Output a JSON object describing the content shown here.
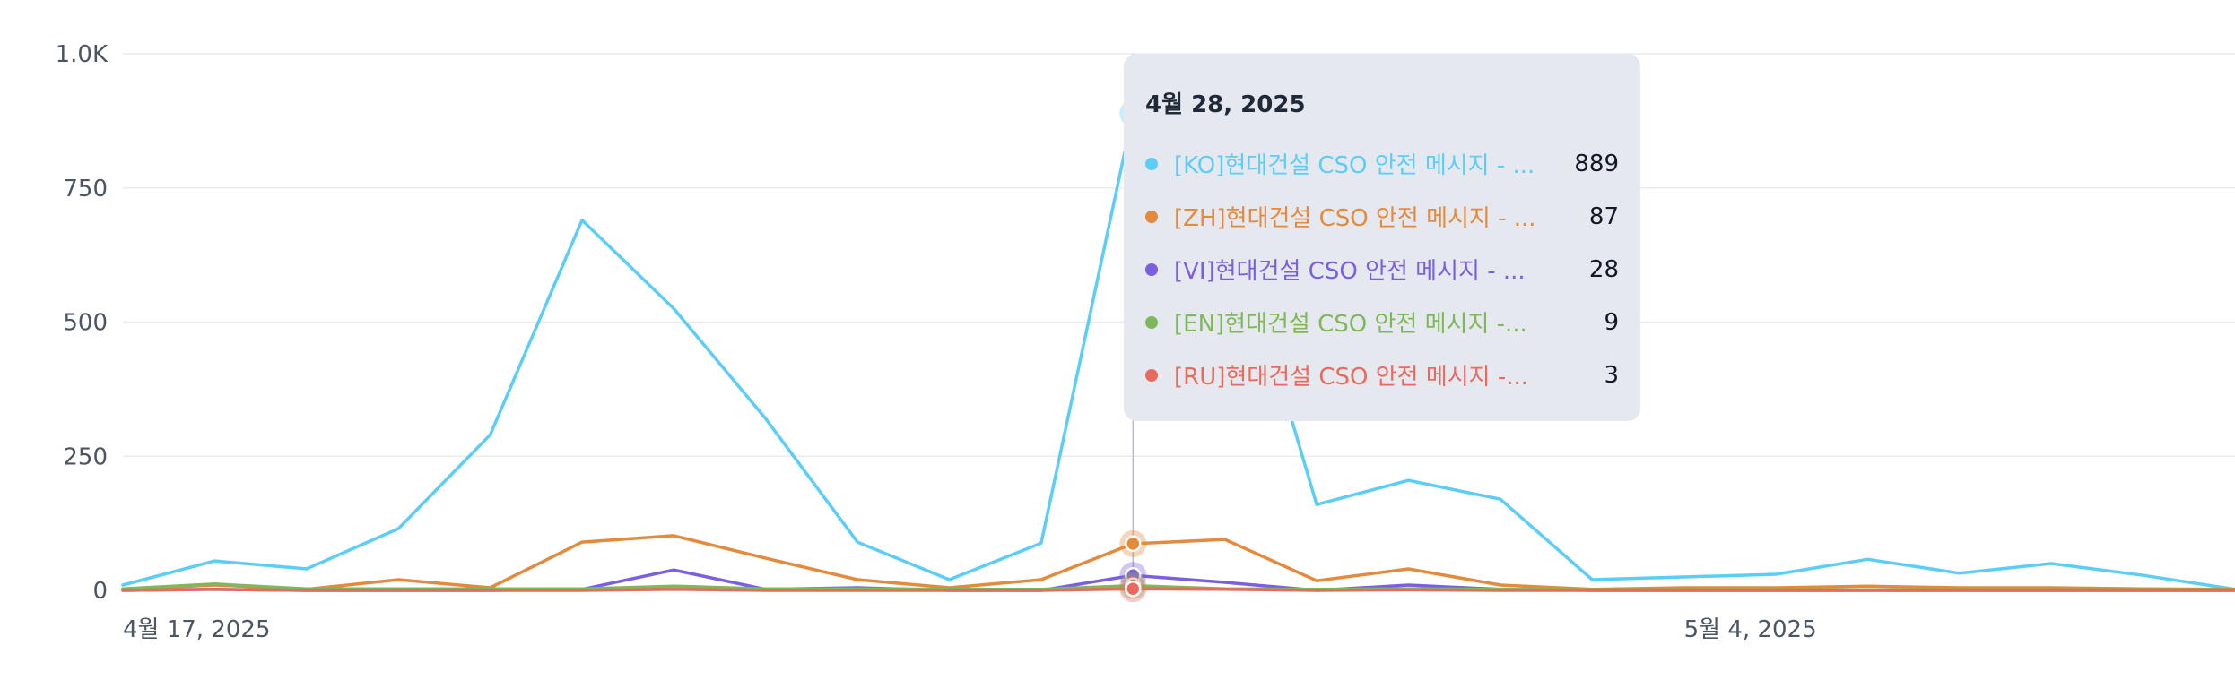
{
  "chart_data": {
    "type": "line",
    "x": [
      "4월 17, 2025",
      "4월 18, 2025",
      "4월 19, 2025",
      "4월 20, 2025",
      "4월 21, 2025",
      "4월 22, 2025",
      "4월 23, 2025",
      "4월 24, 2025",
      "4월 25, 2025",
      "4월 26, 2025",
      "4월 27, 2025",
      "4월 28, 2025",
      "4월 29, 2025",
      "4월 30, 2025",
      "5월 1, 2025",
      "5월 2, 2025",
      "5월 3, 2025",
      "5월 4, 2025",
      "5월 5, 2025",
      "5월 6, 2025",
      "5월 7, 2025",
      "5월 8, 2025",
      "5월 9, 2025",
      "5월 10, 2025"
    ],
    "x_ticks": [
      "4월 17, 2025",
      "5월 4, 2025"
    ],
    "y_ticks": [
      "0",
      "250",
      "500",
      "750",
      "1.0K"
    ],
    "ylim": [
      0,
      1000
    ],
    "grid": true,
    "series": [
      {
        "name": "[KO]현대건설 CSO 안전 메시지 - ...",
        "color": "#5bcdf7",
        "values": [
          10,
          55,
          40,
          115,
          290,
          690,
          525,
          320,
          90,
          20,
          88,
          889,
          740,
          160,
          205,
          170,
          20,
          25,
          30,
          58,
          32,
          50,
          28,
          2
        ]
      },
      {
        "name": "[ZH]현대건설 CSO 안전 메시지 - ...",
        "color": "#e38a3c",
        "values": [
          2,
          10,
          2,
          20,
          5,
          90,
          102,
          60,
          20,
          5,
          20,
          87,
          95,
          18,
          40,
          10,
          2,
          5,
          5,
          8,
          5,
          5,
          3,
          2
        ]
      },
      {
        "name": "[VI]현대건설 CSO 안전 메시지 - ...",
        "color": "#7b5fe0",
        "values": [
          0,
          2,
          0,
          0,
          0,
          2,
          38,
          2,
          5,
          0,
          0,
          28,
          15,
          0,
          10,
          2,
          0,
          0,
          0,
          0,
          0,
          0,
          0,
          0
        ]
      },
      {
        "name": "[EN]현대건설 CSO 안전 메시지 -...",
        "color": "#7fb858",
        "values": [
          3,
          12,
          3,
          3,
          3,
          3,
          8,
          3,
          3,
          2,
          2,
          9,
          3,
          2,
          3,
          2,
          1,
          1,
          1,
          1,
          1,
          1,
          1,
          1
        ]
      },
      {
        "name": "[RU]현대건설 CSO 안전 메시지 -...",
        "color": "#e86a5f",
        "values": [
          0,
          2,
          0,
          0,
          0,
          0,
          2,
          0,
          0,
          0,
          0,
          3,
          2,
          0,
          1,
          0,
          0,
          0,
          0,
          0,
          0,
          0,
          0,
          0
        ]
      }
    ]
  },
  "tooltip": {
    "date": "4월 28, 2025",
    "rows": [
      {
        "label": "[KO]현대건설 CSO 안전 메시지 - ...",
        "value": "889",
        "color": "#5bcdf7"
      },
      {
        "label": "[ZH]현대건설 CSO 안전 메시지 - ...",
        "value": "87",
        "color": "#e38a3c"
      },
      {
        "label": "[VI]현대건설 CSO 안전 메시지 - ...",
        "value": "28",
        "color": "#7b5fe0"
      },
      {
        "label": "[EN]현대건설 CSO 안전 메시지 -...",
        "value": "9",
        "color": "#7fb858"
      },
      {
        "label": "[RU]현대건설 CSO 안전 메시지 -...",
        "value": "3",
        "color": "#e86a5f"
      }
    ]
  },
  "hover_index": 11
}
